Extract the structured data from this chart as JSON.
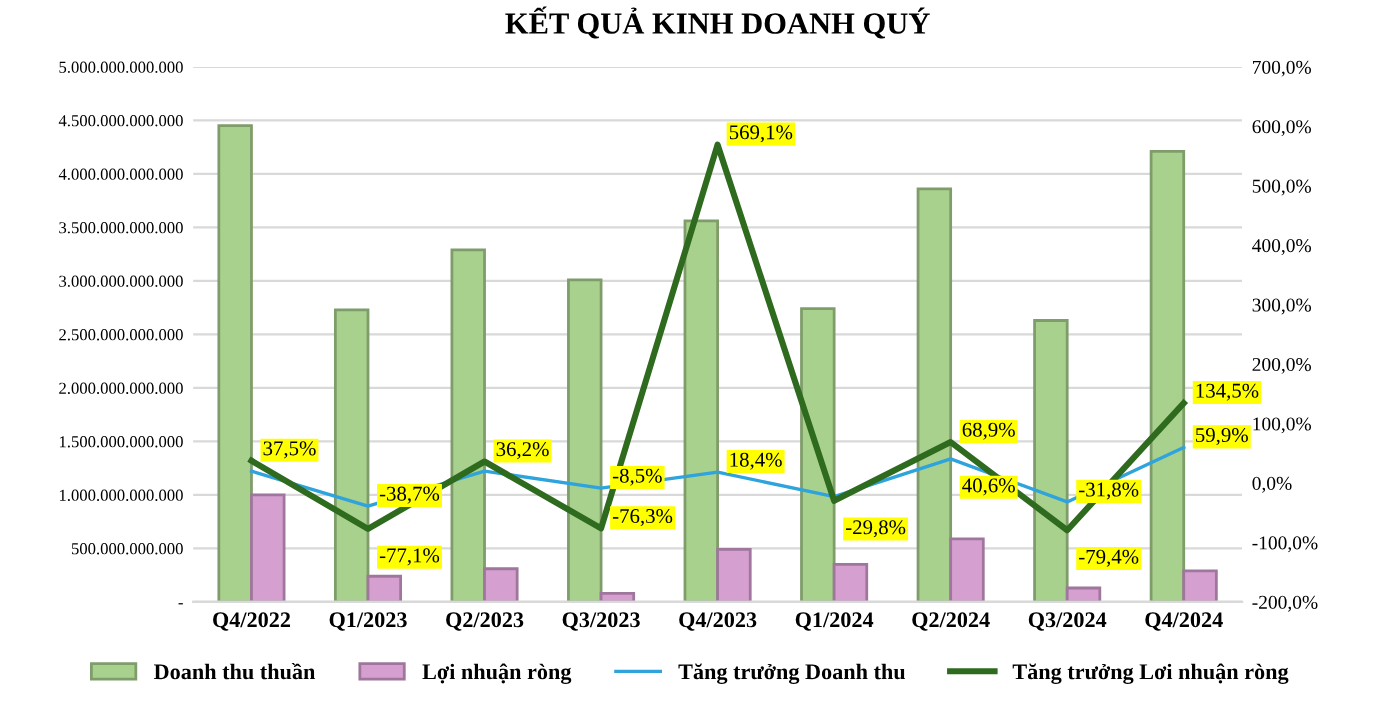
{
  "chart_data": {
    "type": "bar",
    "title": "KẾT QUẢ KINH DOANH QUÝ",
    "categories": [
      "Q4/2022",
      "Q1/2023",
      "Q2/2023",
      "Q3/2023",
      "Q4/2023",
      "Q1/2024",
      "Q2/2024",
      "Q3/2024",
      "Q4/2024"
    ],
    "series": [
      {
        "name": "Doanh thu thuần",
        "color": "#a9d18e",
        "values": [
          4450000000000,
          2730000000000,
          3290000000000,
          3010000000000,
          3560000000000,
          2740000000000,
          3860000000000,
          2630000000000,
          4210000000000
        ]
      },
      {
        "name": "Lợi nhuận ròng",
        "color": "#d59fd0",
        "values": [
          1000000000000,
          240000000000,
          310000000000,
          80000000000,
          490000000000,
          350000000000,
          590000000000,
          130000000000,
          290000000000
        ]
      },
      {
        "name": "Tăng trưởng Doanh thu",
        "type": "line",
        "axis": "y2",
        "color": "#2ea3dc",
        "values": [
          20,
          -38.7,
          20,
          -8.5,
          18.4,
          -23,
          40.6,
          -31.8,
          59.9
        ],
        "value_labels": [
          null,
          "-38,7%",
          null,
          "-8,5%",
          "18,4%",
          null,
          "40,6%",
          "-31,8%",
          "59,9%"
        ]
      },
      {
        "name": "Tăng trưởng Lơi nhuận ròng",
        "type": "line",
        "axis": "y2",
        "color": "#2e6b1e",
        "values": [
          37.5,
          -77.1,
          36.2,
          -76.3,
          569.1,
          -29.8,
          68.9,
          -79.4,
          134.5
        ],
        "value_labels": [
          "37,5%",
          "-77,1%",
          "36,2%",
          "-76,3%",
          "569,1%",
          "-29,8%",
          "68,9%",
          "-79,4%",
          "134,5%"
        ]
      }
    ],
    "ylim": [
      0,
      5000000000000
    ],
    "yticks": [
      {
        "value": 0,
        "label": "-"
      },
      {
        "value": 500000000000,
        "label": "500.000.000.000"
      },
      {
        "value": 1000000000000,
        "label": "1.000.000.000.000"
      },
      {
        "value": 1500000000000,
        "label": "1.500.000.000.000"
      },
      {
        "value": 2000000000000,
        "label": "2.000.000.000.000"
      },
      {
        "value": 2500000000000,
        "label": "2.500.000.000.000"
      },
      {
        "value": 3000000000000,
        "label": "3.000.000.000.000"
      },
      {
        "value": 3500000000000,
        "label": "3.500.000.000.000"
      },
      {
        "value": 4000000000000,
        "label": "4.000.000.000.000"
      },
      {
        "value": 4500000000000,
        "label": "4.500.000.000.000"
      },
      {
        "value": 5000000000000,
        "label": "5.000.000.000.000"
      }
    ],
    "y2lim": [
      -200,
      700
    ],
    "y2ticks": [
      {
        "value": -200,
        "label": "-200,0%"
      },
      {
        "value": -100,
        "label": "-100,0%"
      },
      {
        "value": 0,
        "label": "0,0%"
      },
      {
        "value": 100,
        "label": "100,0%"
      },
      {
        "value": 200,
        "label": "200,0%"
      },
      {
        "value": 300,
        "label": "300,0%"
      },
      {
        "value": 400,
        "label": "400,0%"
      },
      {
        "value": 500,
        "label": "500,0%"
      },
      {
        "value": 600,
        "label": "600,0%"
      },
      {
        "value": 700,
        "label": "700,0%"
      }
    ],
    "grid": "y",
    "legend": "bottom"
  }
}
